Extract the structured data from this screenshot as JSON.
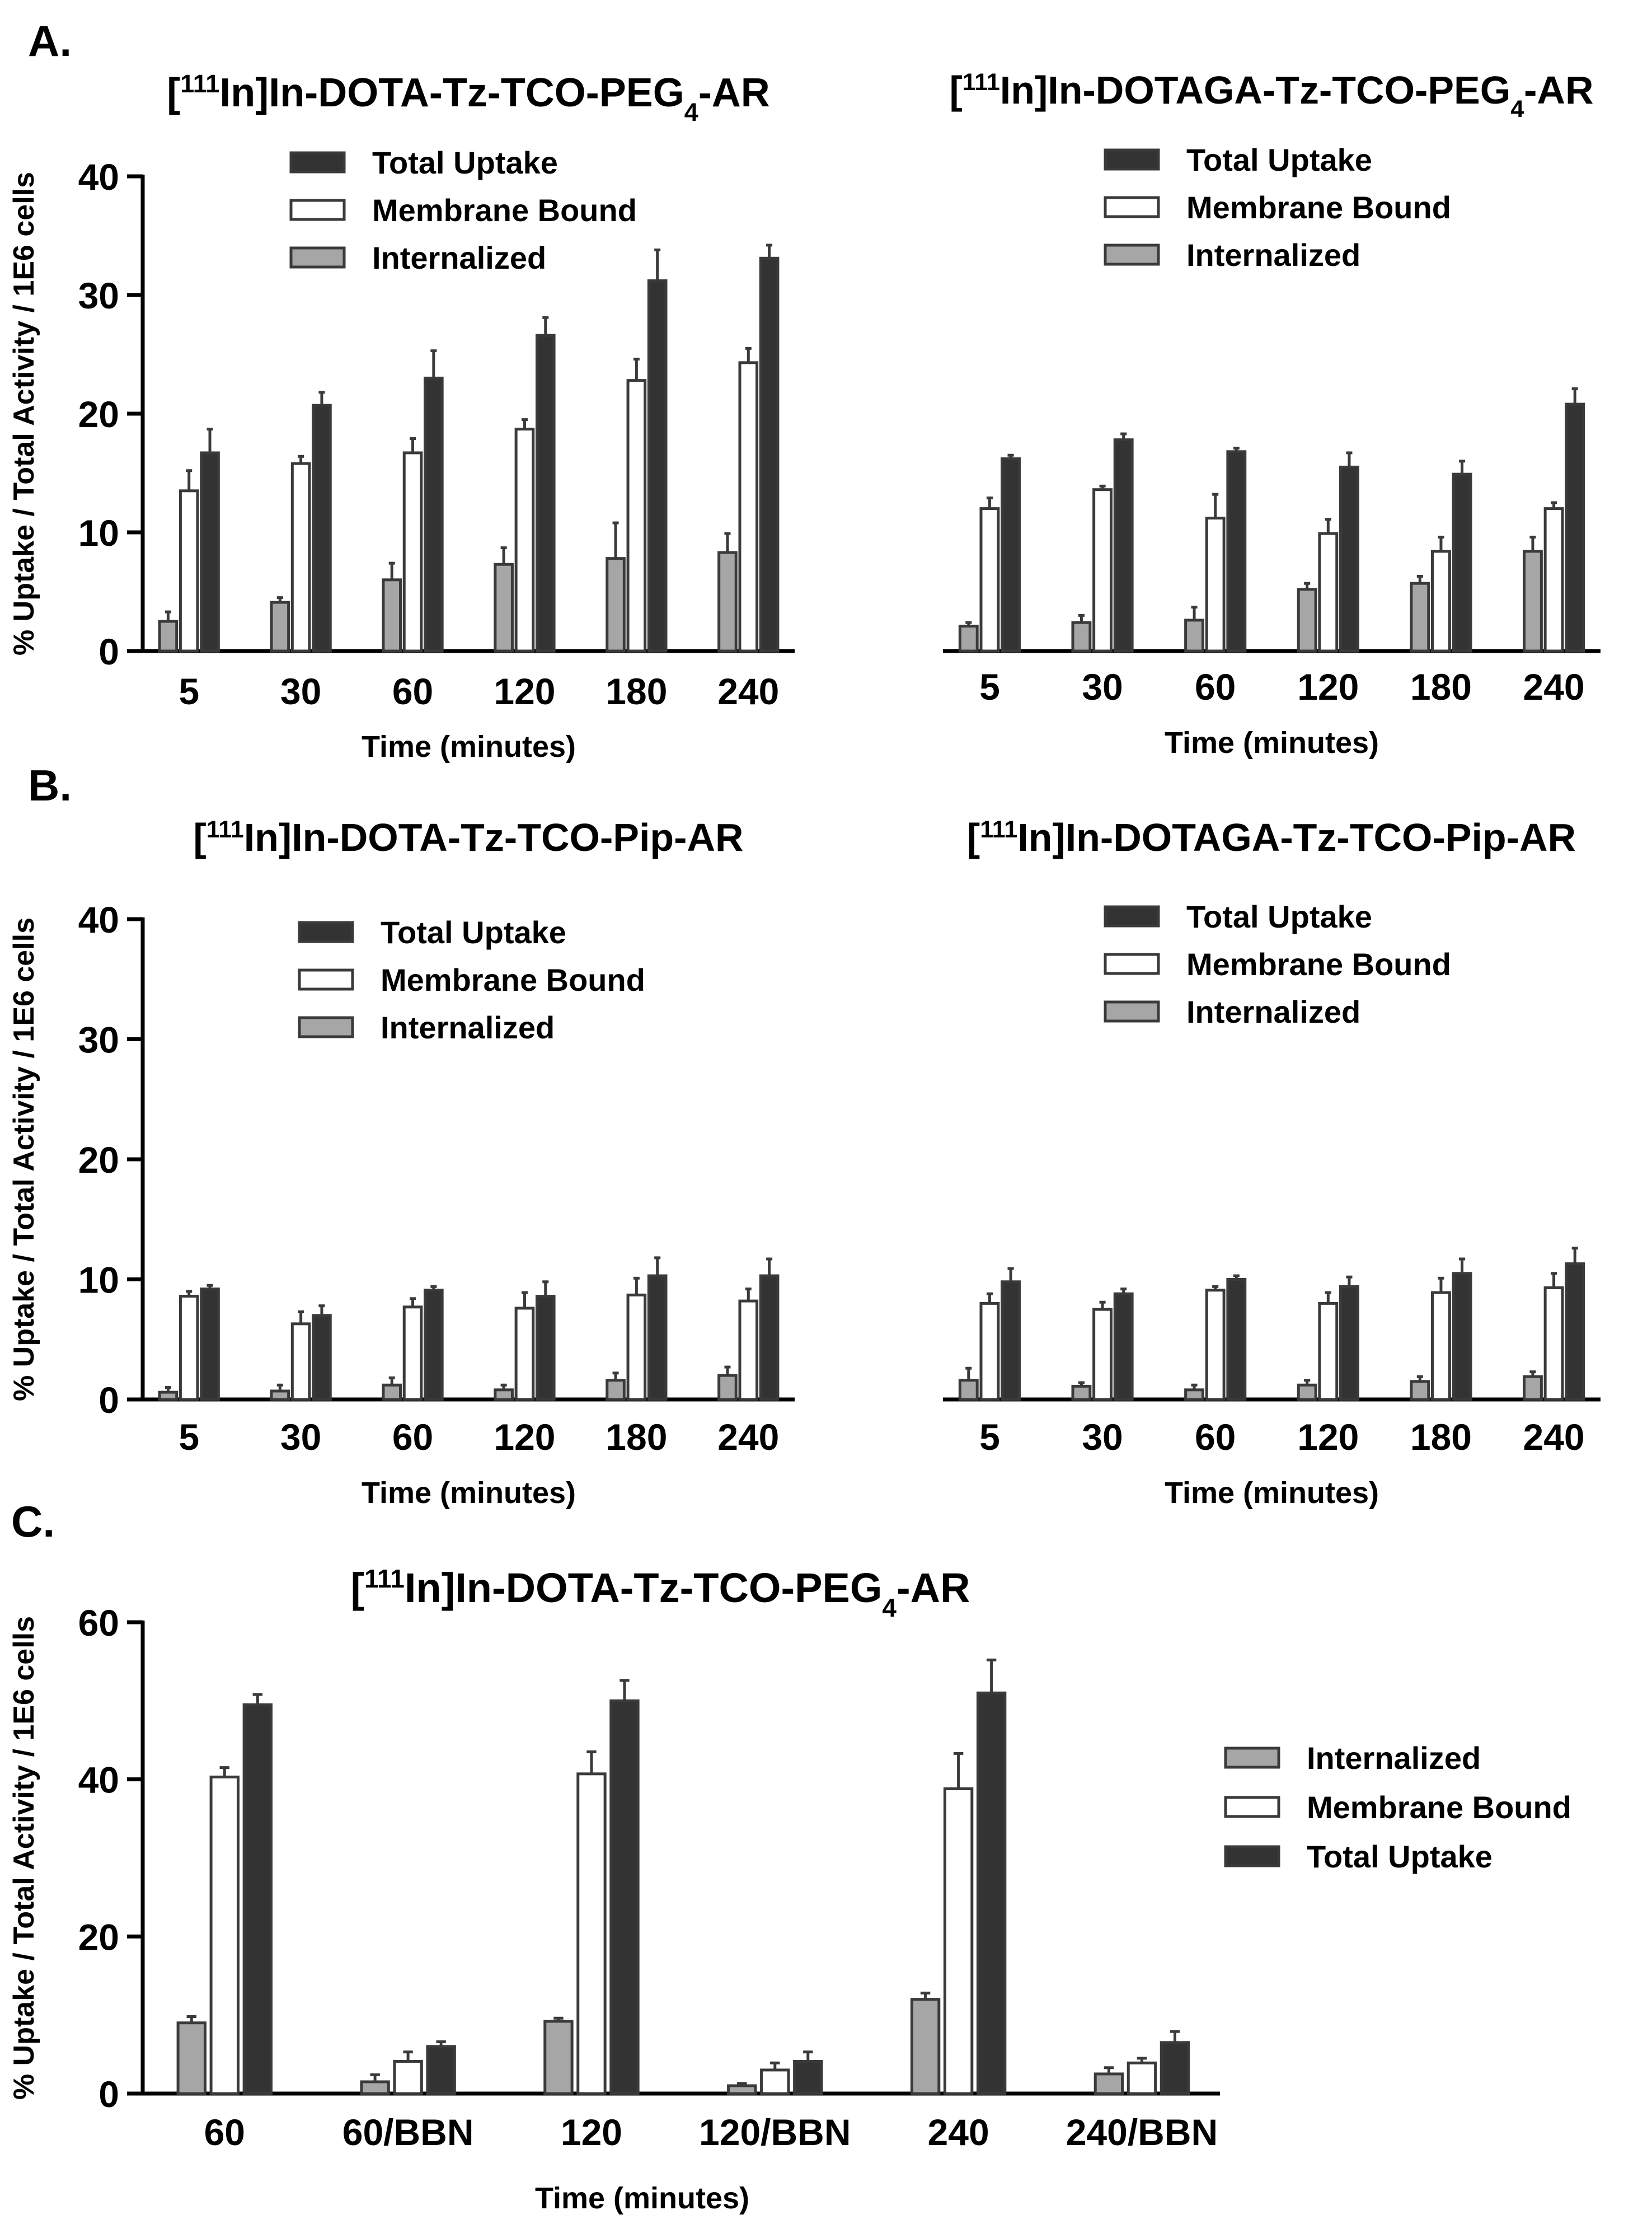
{
  "colors": {
    "internalized": "#a6a6a6",
    "membrane": "#ffffff",
    "total": "#333333",
    "axis": "#000000"
  },
  "panel_labels": [
    "A.",
    "B.",
    "C."
  ],
  "chart_data": [
    {
      "type": "bar",
      "panel": "A",
      "title": "[111In]In-DOTA-Tz-TCO-PEG4-AR",
      "title_parts": {
        "bracket_open": "[",
        "sup": "111",
        "main": "In]In-DOTA-Tz-TCO-PEG",
        "sub": "4",
        "tail": "-AR"
      },
      "xlabel": "Time (minutes)",
      "ylabel": "% Uptake / Total Activity / 1E6 cells",
      "ylim": [
        0,
        40
      ],
      "yticks": [
        "0",
        "10",
        "20",
        "30",
        "40"
      ],
      "show_y_axis": true,
      "categories": [
        "5",
        "30",
        "60",
        "120",
        "180",
        "240"
      ],
      "legend_order": [
        "Total Uptake",
        "Membrane Bound",
        "Internalized"
      ],
      "series": [
        {
          "name": "Internalized",
          "values": [
            2.5,
            4.1,
            6.0,
            7.3,
            7.8,
            8.3
          ],
          "errors": [
            0.8,
            0.4,
            1.4,
            1.4,
            3.0,
            1.6
          ]
        },
        {
          "name": "Membrane Bound",
          "values": [
            13.5,
            15.8,
            16.7,
            18.7,
            22.8,
            24.3
          ],
          "errors": [
            1.7,
            0.6,
            1.2,
            0.8,
            1.8,
            1.2
          ]
        },
        {
          "name": "Total Uptake",
          "values": [
            16.7,
            20.7,
            23.0,
            26.6,
            31.2,
            33.1
          ],
          "errors": [
            2.0,
            1.1,
            2.3,
            1.5,
            2.6,
            1.1
          ]
        }
      ]
    },
    {
      "type": "bar",
      "panel": "A",
      "title": "[111In]In-DOTAGA-Tz-TCO-PEG4-AR",
      "title_parts": {
        "bracket_open": "[",
        "sup": "111",
        "main": "In]In-DOTAGA-Tz-TCO-PEG",
        "sub": "4",
        "tail": "-AR"
      },
      "xlabel": "Time (minutes)",
      "ylabel": "",
      "ylim": [
        0,
        40
      ],
      "yticks": [],
      "show_y_axis": false,
      "categories": [
        "5",
        "30",
        "60",
        "120",
        "180",
        "240"
      ],
      "legend_order": [
        "Total Uptake",
        "Membrane Bound",
        "Internalized"
      ],
      "series": [
        {
          "name": "Internalized",
          "values": [
            2.1,
            2.4,
            2.6,
            5.2,
            5.7,
            8.4
          ],
          "errors": [
            0.3,
            0.6,
            1.1,
            0.5,
            0.6,
            1.2
          ]
        },
        {
          "name": "Membrane Bound",
          "values": [
            12.0,
            13.6,
            11.2,
            9.9,
            8.4,
            12.0
          ],
          "errors": [
            0.9,
            0.3,
            2.0,
            1.2,
            1.2,
            0.5
          ]
        },
        {
          "name": "Total Uptake",
          "values": [
            16.2,
            17.8,
            16.8,
            15.5,
            14.9,
            20.8
          ],
          "errors": [
            0.3,
            0.5,
            0.3,
            1.2,
            1.1,
            1.3
          ]
        }
      ]
    },
    {
      "type": "bar",
      "panel": "B",
      "title": "[111In]In-DOTA-Tz-TCO-Pip-AR",
      "title_parts": {
        "bracket_open": "[",
        "sup": "111",
        "main": "In]In-DOTA-Tz-TCO-Pip-AR",
        "sub": "",
        "tail": ""
      },
      "xlabel": "Time (minutes)",
      "ylabel": "% Uptake / Total Activity / 1E6 cells",
      "ylim": [
        0,
        40
      ],
      "yticks": [
        "0",
        "10",
        "20",
        "30",
        "40"
      ],
      "show_y_axis": true,
      "categories": [
        "5",
        "30",
        "60",
        "120",
        "180",
        "240"
      ],
      "legend_order": [
        "Total Uptake",
        "Membrane Bound",
        "Internalized"
      ],
      "series": [
        {
          "name": "Internalized",
          "values": [
            0.6,
            0.7,
            1.2,
            0.8,
            1.6,
            2.0
          ],
          "errors": [
            0.4,
            0.5,
            0.6,
            0.4,
            0.6,
            0.7
          ]
        },
        {
          "name": "Membrane Bound",
          "values": [
            8.6,
            6.3,
            7.7,
            7.6,
            8.7,
            8.2
          ],
          "errors": [
            0.4,
            1.0,
            0.7,
            1.3,
            1.4,
            1.0
          ]
        },
        {
          "name": "Total Uptake",
          "values": [
            9.2,
            7.0,
            9.1,
            8.6,
            10.3,
            10.3
          ],
          "errors": [
            0.3,
            0.8,
            0.3,
            1.2,
            1.5,
            1.4
          ]
        }
      ]
    },
    {
      "type": "bar",
      "panel": "B",
      "title": "[111In]In-DOTAGA-Tz-TCO-Pip-AR",
      "title_parts": {
        "bracket_open": "[",
        "sup": "111",
        "main": "In]In-DOTAGA-Tz-TCO-Pip-AR",
        "sub": "",
        "tail": ""
      },
      "xlabel": "Time (minutes)",
      "ylabel": "",
      "ylim": [
        0,
        40
      ],
      "yticks": [],
      "show_y_axis": false,
      "categories": [
        "5",
        "30",
        "60",
        "120",
        "180",
        "240"
      ],
      "legend_order": [
        "Total Uptake",
        "Membrane Bound",
        "Internalized"
      ],
      "series": [
        {
          "name": "Internalized",
          "values": [
            1.6,
            1.1,
            0.8,
            1.2,
            1.5,
            1.9
          ],
          "errors": [
            1.0,
            0.3,
            0.4,
            0.4,
            0.4,
            0.4
          ]
        },
        {
          "name": "Membrane Bound",
          "values": [
            8.0,
            7.5,
            9.1,
            8.0,
            8.9,
            9.3
          ],
          "errors": [
            0.8,
            0.6,
            0.3,
            0.9,
            1.2,
            1.2
          ]
        },
        {
          "name": "Total Uptake",
          "values": [
            9.8,
            8.8,
            10.0,
            9.4,
            10.5,
            11.3
          ],
          "errors": [
            1.1,
            0.4,
            0.3,
            0.8,
            1.2,
            1.3
          ]
        }
      ]
    },
    {
      "type": "bar",
      "panel": "C",
      "title": "[111In]In-DOTA-Tz-TCO-PEG4-AR",
      "title_parts": {
        "bracket_open": "[",
        "sup": "111",
        "main": "In]In-DOTA-Tz-TCO-PEG",
        "sub": "4",
        "tail": "-AR"
      },
      "xlabel": "Time (minutes)",
      "ylabel": "% Uptake / Total Activity / 1E6 cells",
      "ylim": [
        0,
        60
      ],
      "yticks": [
        "0",
        "20",
        "40",
        "60"
      ],
      "show_y_axis": true,
      "categories": [
        "60",
        "60/BBN",
        "120",
        "120/BBN",
        "240",
        "240/BBN"
      ],
      "legend_order": [
        "Internalized",
        "Membrane Bound",
        "Total Uptake"
      ],
      "series": [
        {
          "name": "Internalized",
          "values": [
            9.0,
            1.5,
            9.2,
            1.0,
            12.0,
            2.5
          ],
          "errors": [
            0.8,
            0.9,
            0.4,
            0.3,
            0.8,
            0.8
          ]
        },
        {
          "name": "Membrane Bound",
          "values": [
            40.3,
            4.1,
            40.7,
            3.0,
            38.8,
            3.9
          ],
          "errors": [
            1.2,
            1.2,
            2.8,
            0.9,
            4.5,
            0.6
          ]
        },
        {
          "name": "Total Uptake",
          "values": [
            49.5,
            6.0,
            50.0,
            4.1,
            51.0,
            6.5
          ],
          "errors": [
            1.3,
            0.6,
            2.6,
            1.2,
            4.2,
            1.4
          ]
        }
      ]
    }
  ]
}
